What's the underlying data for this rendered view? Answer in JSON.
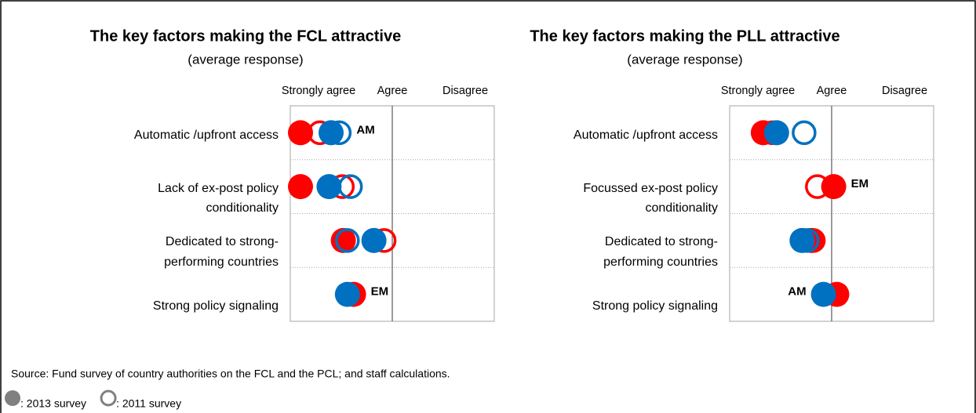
{
  "chart_data": [
    {
      "type": "dot",
      "title": "The key factors making the FCL attractive",
      "subtitle": "(average response)",
      "categories": [
        "Automatic /upfront access",
        "Lack of ex-post policy conditionality",
        "Dedicated to strong-performing countries",
        "Strong policy signaling"
      ],
      "xlim": [
        1,
        3
      ],
      "xticks": [
        {
          "value": 1,
          "label": "Strongly agree"
        },
        {
          "value": 2,
          "label": "Agree"
        },
        {
          "value": 3,
          "label": "Disagree"
        }
      ],
      "series": [
        {
          "color": "#ff0000",
          "filled": true,
          "values": [
            1.1,
            1.1,
            1.52,
            1.62
          ]
        },
        {
          "color": "#ff0000",
          "filled": false,
          "values": [
            1.29,
            1.51,
            1.92,
            null
          ]
        },
        {
          "color": "#0070c0",
          "filled": true,
          "values": [
            1.4,
            1.38,
            1.82,
            1.56
          ]
        },
        {
          "color": "#0070c0",
          "filled": false,
          "values": [
            1.48,
            1.59,
            1.56,
            null
          ]
        }
      ],
      "annotations": [
        {
          "text": "AM",
          "color": "#0070c0",
          "row": 0,
          "side": "right"
        },
        {
          "text": "EM",
          "color": "#ff0000",
          "row": 3,
          "side": "right"
        }
      ]
    },
    {
      "type": "dot",
      "title": "The key factors making the PLL attractive",
      "subtitle": "(average response)",
      "categories": [
        "Automatic /upfront access",
        "Focussed ex-post policy conditionality",
        "Dedicated to strong-performing countries",
        "Strong policy signaling"
      ],
      "xlim": [
        1,
        3
      ],
      "xticks": [
        {
          "value": 1,
          "label": "Strongly agree"
        },
        {
          "value": 2,
          "label": "Agree"
        },
        {
          "value": 3,
          "label": "Disagree"
        }
      ],
      "series": [
        {
          "color": "#ff0000",
          "filled": true,
          "values": [
            1.33,
            2.02,
            1.8,
            2.05
          ]
        },
        {
          "color": "#ff0000",
          "filled": false,
          "values": [
            1.42,
            1.86,
            1.82,
            null
          ]
        },
        {
          "color": "#0070c0",
          "filled": true,
          "values": [
            1.46,
            null,
            1.71,
            1.92
          ]
        },
        {
          "color": "#0070c0",
          "filled": false,
          "values": [
            1.73,
            null,
            1.76,
            null
          ]
        }
      ],
      "annotations": [
        {
          "text": "EM",
          "color": "#ff0000",
          "row": 1,
          "side": "right"
        },
        {
          "text": "AM",
          "color": "#0070c0",
          "row": 3,
          "side": "left"
        }
      ]
    }
  ],
  "source": "Source: Fund survey of country authorities on the FCL and the PCL; and staff calculations.",
  "legend": [
    {
      "label": ": 2013 survey",
      "filled": true,
      "color": "#808080"
    },
    {
      "label": ": 2011 survey",
      "filled": false,
      "color": "#808080"
    }
  ]
}
